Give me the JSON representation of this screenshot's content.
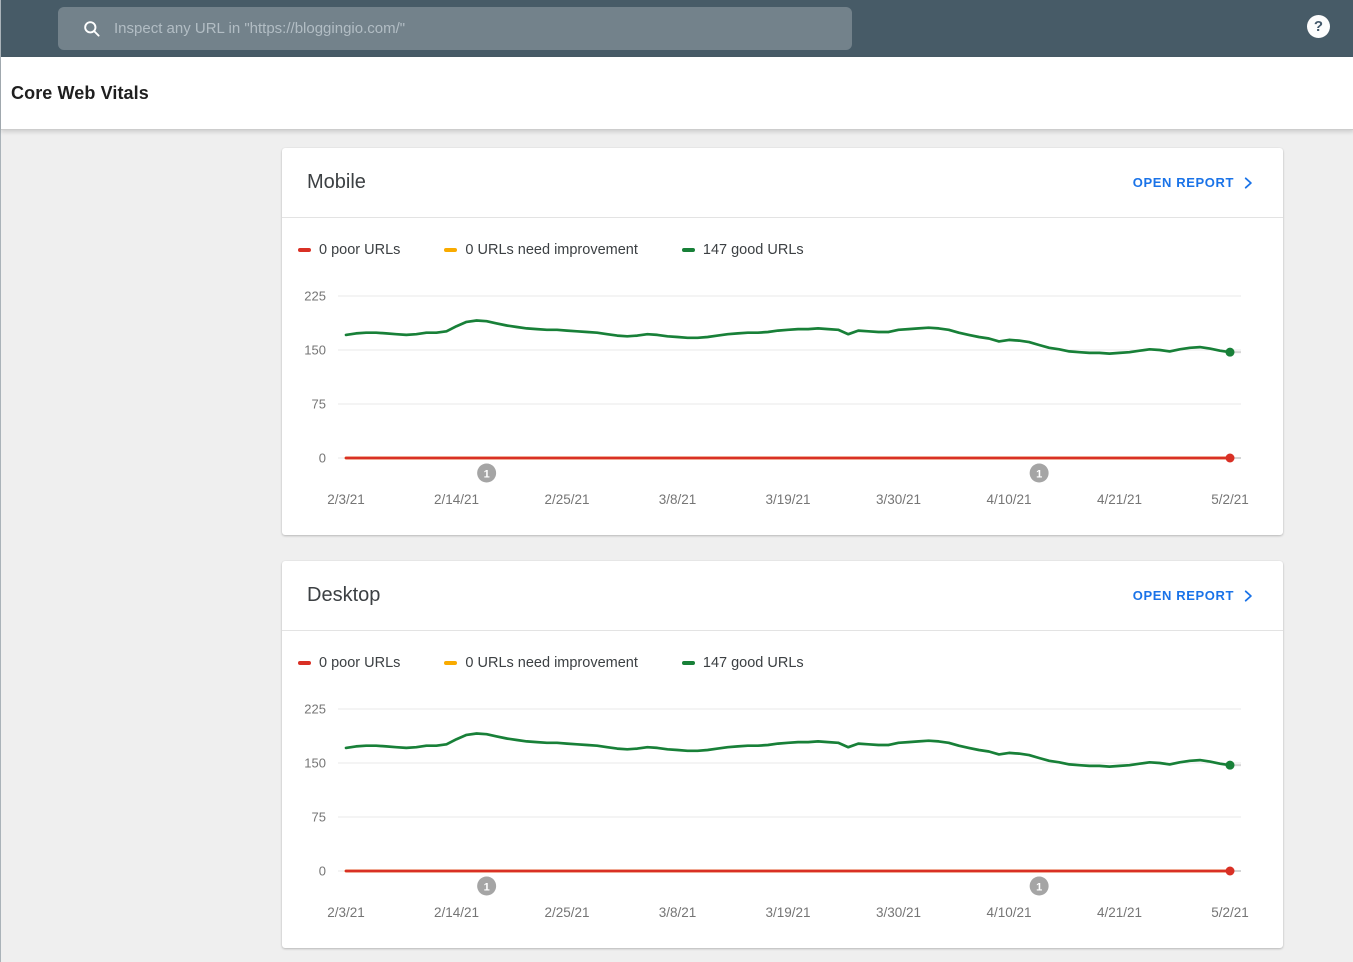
{
  "topbar": {
    "search_placeholder": "Inspect any URL in \"https://bloggingio.com/\"",
    "help_glyph": "?"
  },
  "page": {
    "title": "Core Web Vitals"
  },
  "colors": {
    "poor": "#d93025",
    "need_improvement": "#f9ab00",
    "good": "#188038",
    "link_blue": "#1a73e8",
    "topbar_bg": "#475b67",
    "axis_text": "#757575",
    "gridline": "#e9e9e9",
    "annotation_gray": "#a5a5a5"
  },
  "cards": [
    {
      "title": "Mobile",
      "open_report_label": "OPEN REPORT",
      "legend": [
        {
          "label": "0 poor URLs",
          "color": "#d93025"
        },
        {
          "label": "0 URLs need improvement",
          "color": "#f9ab00"
        },
        {
          "label": "147 good URLs",
          "color": "#188038"
        }
      ]
    },
    {
      "title": "Desktop",
      "open_report_label": "OPEN REPORT",
      "legend": [
        {
          "label": "0 poor URLs",
          "color": "#d93025"
        },
        {
          "label": "0 URLs need improvement",
          "color": "#f9ab00"
        },
        {
          "label": "147 good URLs",
          "color": "#188038"
        }
      ]
    }
  ],
  "chart_data": [
    {
      "type": "line",
      "title": "Mobile Core Web Vitals URLs over time",
      "x_range": [
        "2/3/21",
        "5/2/21"
      ],
      "x_tick_labels": [
        "2/3/21",
        "2/14/21",
        "2/25/21",
        "3/8/21",
        "3/19/21",
        "3/30/21",
        "4/10/21",
        "4/21/21",
        "5/2/21"
      ],
      "x_tick_day_indices": [
        0,
        11,
        22,
        33,
        44,
        55,
        66,
        77,
        88
      ],
      "y_ticks": [
        0,
        75,
        150,
        225
      ],
      "ylim": [
        0,
        225
      ],
      "grid": "horizontal",
      "legend_position": "top",
      "series": [
        {
          "name": "0 URLs need improvement",
          "color": "#f9ab00",
          "constant_value": 0,
          "end_dot": false
        },
        {
          "name": "0 poor URLs",
          "color": "#d93025",
          "constant_value": 0,
          "end_dot": true
        },
        {
          "name": "147 good URLs",
          "color": "#188038",
          "end_dot": true,
          "values": [
            171,
            173,
            174,
            174,
            173,
            172,
            171,
            172,
            174,
            174,
            176,
            183,
            189,
            191,
            190,
            187,
            184,
            182,
            180,
            179,
            178,
            178,
            177,
            176,
            175,
            174,
            172,
            170,
            169,
            170,
            172,
            171,
            169,
            168,
            167,
            167,
            168,
            170,
            172,
            173,
            174,
            174,
            175,
            177,
            178,
            179,
            179,
            180,
            179,
            178,
            172,
            177,
            176,
            175,
            175,
            178,
            179,
            180,
            181,
            180,
            178,
            174,
            171,
            168,
            166,
            162,
            164,
            163,
            161,
            157,
            153,
            151,
            148,
            147,
            146,
            146,
            145,
            146,
            147,
            149,
            151,
            150,
            148,
            151,
            153,
            154,
            152,
            149,
            147
          ]
        }
      ],
      "annotations": [
        {
          "label": "1",
          "day_index": 14
        },
        {
          "label": "1",
          "day_index": 69
        }
      ]
    },
    {
      "type": "line",
      "title": "Desktop Core Web Vitals URLs over time",
      "x_range": [
        "2/3/21",
        "5/2/21"
      ],
      "x_tick_labels": [
        "2/3/21",
        "2/14/21",
        "2/25/21",
        "3/8/21",
        "3/19/21",
        "3/30/21",
        "4/10/21",
        "4/21/21",
        "5/2/21"
      ],
      "x_tick_day_indices": [
        0,
        11,
        22,
        33,
        44,
        55,
        66,
        77,
        88
      ],
      "y_ticks": [
        0,
        75,
        150,
        225
      ],
      "ylim": [
        0,
        225
      ],
      "grid": "horizontal",
      "legend_position": "top",
      "series": [
        {
          "name": "0 URLs need improvement",
          "color": "#f9ab00",
          "constant_value": 0,
          "end_dot": false
        },
        {
          "name": "0 poor URLs",
          "color": "#d93025",
          "constant_value": 0,
          "end_dot": true
        },
        {
          "name": "147 good URLs",
          "color": "#188038",
          "end_dot": true,
          "values": [
            171,
            173,
            174,
            174,
            173,
            172,
            171,
            172,
            174,
            174,
            176,
            183,
            189,
            191,
            190,
            187,
            184,
            182,
            180,
            179,
            178,
            178,
            177,
            176,
            175,
            174,
            172,
            170,
            169,
            170,
            172,
            171,
            169,
            168,
            167,
            167,
            168,
            170,
            172,
            173,
            174,
            174,
            175,
            177,
            178,
            179,
            179,
            180,
            179,
            178,
            172,
            177,
            176,
            175,
            175,
            178,
            179,
            180,
            181,
            180,
            178,
            174,
            171,
            168,
            166,
            162,
            164,
            163,
            161,
            157,
            153,
            151,
            148,
            147,
            146,
            146,
            145,
            146,
            147,
            149,
            151,
            150,
            148,
            151,
            153,
            154,
            152,
            149,
            147
          ]
        }
      ],
      "annotations": [
        {
          "label": "1",
          "day_index": 14
        },
        {
          "label": "1",
          "day_index": 69
        }
      ]
    }
  ]
}
